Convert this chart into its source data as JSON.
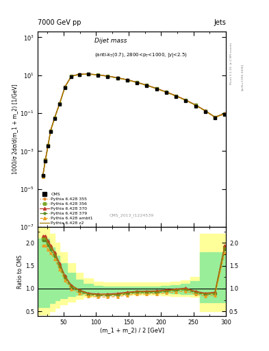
{
  "title_left": "7000 GeV pp",
  "title_right": "Jets",
  "rivet_label": "Rivet 3.1.10, ≥ 2.9M events",
  "arxiv_label": "[arXiv:1306.3436]",
  "cms_watermark": "CMS_2013_I1224539",
  "ylabel_main": "1000/σ 2dσ/d(m_1 + m_2) [1/GeV]",
  "ylabel_ratio": "Ratio to CMS",
  "xlabel": "(m_1 + m_2) / 2 [GeV]",
  "xlim": [
    10,
    300
  ],
  "ylim_main_lo": 1e-07,
  "ylim_main_hi": 2000,
  "ylim_ratio_lo": 0.4,
  "ylim_ratio_hi": 2.35,
  "x_data": [
    18,
    22,
    26,
    30,
    36,
    44,
    52,
    62,
    74,
    88,
    103,
    118,
    133,
    148,
    163,
    178,
    193,
    208,
    223,
    238,
    253,
    268,
    283,
    298
  ],
  "cms_y": [
    5e-05,
    0.0003,
    0.0018,
    0.011,
    0.05,
    0.3,
    2.2,
    8.5,
    10.8,
    11.2,
    10.2,
    8.6,
    7.0,
    5.4,
    3.95,
    2.75,
    1.85,
    1.2,
    0.75,
    0.44,
    0.24,
    0.12,
    0.055,
    0.085
  ],
  "pythia355_y": [
    5e-05,
    0.00035,
    0.002,
    0.012,
    0.055,
    0.33,
    2.4,
    9.0,
    11.1,
    11.5,
    10.5,
    8.9,
    7.3,
    5.7,
    4.2,
    2.95,
    2.0,
    1.3,
    0.82,
    0.49,
    0.27,
    0.135,
    0.062,
    0.095
  ],
  "pythia356_y": [
    5e-05,
    0.00035,
    0.002,
    0.012,
    0.055,
    0.33,
    2.4,
    9.0,
    11.1,
    11.5,
    10.5,
    8.9,
    7.3,
    5.7,
    4.2,
    2.95,
    2.0,
    1.3,
    0.82,
    0.49,
    0.27,
    0.135,
    0.062,
    0.095
  ],
  "pythia370_y": [
    5.5e-05,
    0.00038,
    0.0022,
    0.013,
    0.058,
    0.35,
    2.5,
    9.2,
    11.3,
    11.7,
    10.7,
    9.1,
    7.5,
    5.85,
    4.3,
    3.02,
    2.04,
    1.33,
    0.84,
    0.5,
    0.275,
    0.138,
    0.063,
    0.097
  ],
  "pythia379_y": [
    5e-05,
    0.00033,
    0.0019,
    0.0115,
    0.053,
    0.32,
    2.35,
    8.9,
    11.0,
    11.4,
    10.4,
    8.8,
    7.2,
    5.6,
    4.15,
    2.9,
    1.96,
    1.27,
    0.8,
    0.48,
    0.265,
    0.133,
    0.061,
    0.093
  ],
  "pythia_ambt1_y": [
    4.5e-05,
    0.0003,
    0.0018,
    0.011,
    0.051,
    0.31,
    2.28,
    8.7,
    10.9,
    11.3,
    10.3,
    8.75,
    7.15,
    5.55,
    4.1,
    2.88,
    1.94,
    1.26,
    0.79,
    0.47,
    0.26,
    0.13,
    0.059,
    0.09
  ],
  "pythia_z2_y": [
    5.2e-05,
    0.00036,
    0.00205,
    0.0122,
    0.056,
    0.335,
    2.42,
    9.05,
    11.15,
    11.55,
    10.55,
    8.95,
    7.35,
    5.72,
    4.22,
    2.97,
    2.01,
    1.305,
    0.822,
    0.492,
    0.271,
    0.136,
    0.0625,
    0.096
  ],
  "ratio_355": [
    2.1,
    2.1,
    2.0,
    1.9,
    1.75,
    1.5,
    1.25,
    1.05,
    0.95,
    0.88,
    0.86,
    0.86,
    0.87,
    0.9,
    0.92,
    0.92,
    0.93,
    0.95,
    0.97,
    0.99,
    0.92,
    0.88,
    0.9,
    1.9
  ],
  "ratio_356": [
    2.1,
    2.1,
    2.0,
    1.9,
    1.75,
    1.5,
    1.25,
    1.05,
    0.95,
    0.88,
    0.86,
    0.86,
    0.87,
    0.9,
    0.92,
    0.92,
    0.93,
    0.95,
    0.97,
    0.99,
    0.92,
    0.88,
    0.9,
    1.9
  ],
  "ratio_370": [
    2.15,
    2.15,
    2.05,
    1.95,
    1.8,
    1.55,
    1.28,
    1.07,
    0.97,
    0.9,
    0.88,
    0.88,
    0.895,
    0.92,
    0.94,
    0.944,
    0.95,
    0.97,
    0.99,
    1.01,
    0.94,
    0.9,
    0.92,
    1.95
  ],
  "ratio_379": [
    2.05,
    2.05,
    1.95,
    1.85,
    1.71,
    1.47,
    1.22,
    1.03,
    0.93,
    0.865,
    0.845,
    0.845,
    0.855,
    0.885,
    0.91,
    0.91,
    0.915,
    0.935,
    0.955,
    0.975,
    0.905,
    0.865,
    0.885,
    1.85
  ],
  "ratio_ambt1": [
    1.95,
    1.95,
    1.85,
    1.78,
    1.65,
    1.42,
    1.18,
    0.99,
    0.9,
    0.835,
    0.815,
    0.815,
    0.825,
    0.855,
    0.88,
    0.88,
    0.885,
    0.905,
    0.925,
    0.945,
    0.875,
    0.835,
    0.855,
    1.78
  ],
  "ratio_z2": [
    2.12,
    2.12,
    2.02,
    1.92,
    1.77,
    1.52,
    1.26,
    1.06,
    0.96,
    0.885,
    0.865,
    0.865,
    0.875,
    0.905,
    0.93,
    0.93,
    0.935,
    0.955,
    0.975,
    0.995,
    0.925,
    0.885,
    0.905,
    1.92
  ],
  "band_x_edges": [
    10,
    20,
    28,
    36,
    44,
    55,
    68,
    80,
    95,
    110,
    125,
    140,
    155,
    170,
    185,
    200,
    215,
    230,
    245,
    260,
    272,
    280,
    290,
    300
  ],
  "band_yellow_lo": [
    0.42,
    0.42,
    0.5,
    0.58,
    0.65,
    0.72,
    0.78,
    0.82,
    0.85,
    0.86,
    0.86,
    0.86,
    0.86,
    0.86,
    0.86,
    0.85,
    0.84,
    0.83,
    0.82,
    0.5,
    0.5,
    0.5,
    0.5,
    0.5
  ],
  "band_yellow_hi": [
    2.35,
    2.35,
    2.2,
    2.0,
    1.8,
    1.55,
    1.35,
    1.22,
    1.15,
    1.13,
    1.13,
    1.13,
    1.13,
    1.13,
    1.13,
    1.14,
    1.15,
    1.18,
    1.25,
    2.2,
    2.2,
    2.2,
    2.2,
    2.2
  ],
  "band_green_lo": [
    0.6,
    0.6,
    0.68,
    0.74,
    0.79,
    0.84,
    0.87,
    0.89,
    0.905,
    0.915,
    0.915,
    0.915,
    0.915,
    0.915,
    0.915,
    0.905,
    0.895,
    0.885,
    0.875,
    0.7,
    0.7,
    0.7,
    0.7,
    0.7
  ],
  "band_green_hi": [
    2.1,
    2.1,
    1.9,
    1.72,
    1.55,
    1.35,
    1.2,
    1.1,
    1.06,
    1.05,
    1.05,
    1.05,
    1.05,
    1.05,
    1.05,
    1.06,
    1.07,
    1.1,
    1.16,
    1.8,
    1.8,
    1.8,
    1.8,
    1.8
  ],
  "colors": {
    "cms": "#000000",
    "p355": "#e8892b",
    "p356": "#7aaa2a",
    "p370": "#c0392b",
    "p379": "#5a8a20",
    "ambt1": "#e8a020",
    "z2": "#a07800"
  },
  "color_yellow": "#ffff99",
  "color_green": "#99ee99"
}
